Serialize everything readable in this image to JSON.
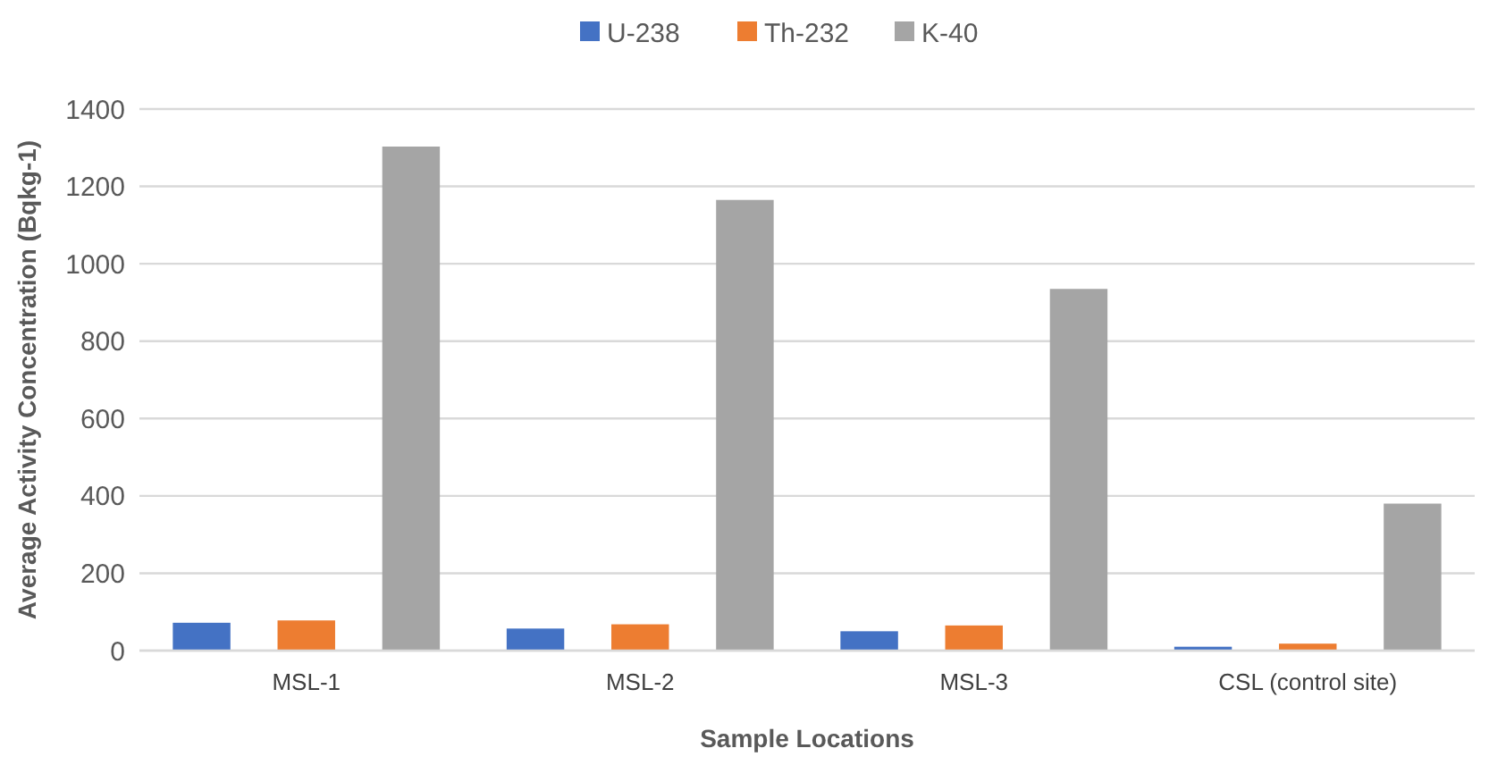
{
  "chart_data": {
    "type": "bar",
    "xlabel": "Sample  Locations",
    "ylabel": "Average Activity Concentration (Bqkg-1)",
    "categories": [
      "MSL-1",
      "MSL-2",
      "MSL-3",
      "CSL (control site)"
    ],
    "series": [
      {
        "name": "U-238",
        "color": "#4472c4",
        "values": [
          72,
          57,
          50,
          10
        ]
      },
      {
        "name": "Th-232",
        "color": "#ed7d31",
        "values": [
          78,
          68,
          65,
          18
        ]
      },
      {
        "name": "K-40",
        "color": "#a5a5a5",
        "values": [
          1303,
          1165,
          935,
          380
        ]
      }
    ],
    "ylim": [
      0,
      1400
    ],
    "yticks": [
      0,
      200,
      400,
      600,
      800,
      1000,
      1200,
      1400
    ],
    "grid": "y",
    "legend": "top"
  }
}
